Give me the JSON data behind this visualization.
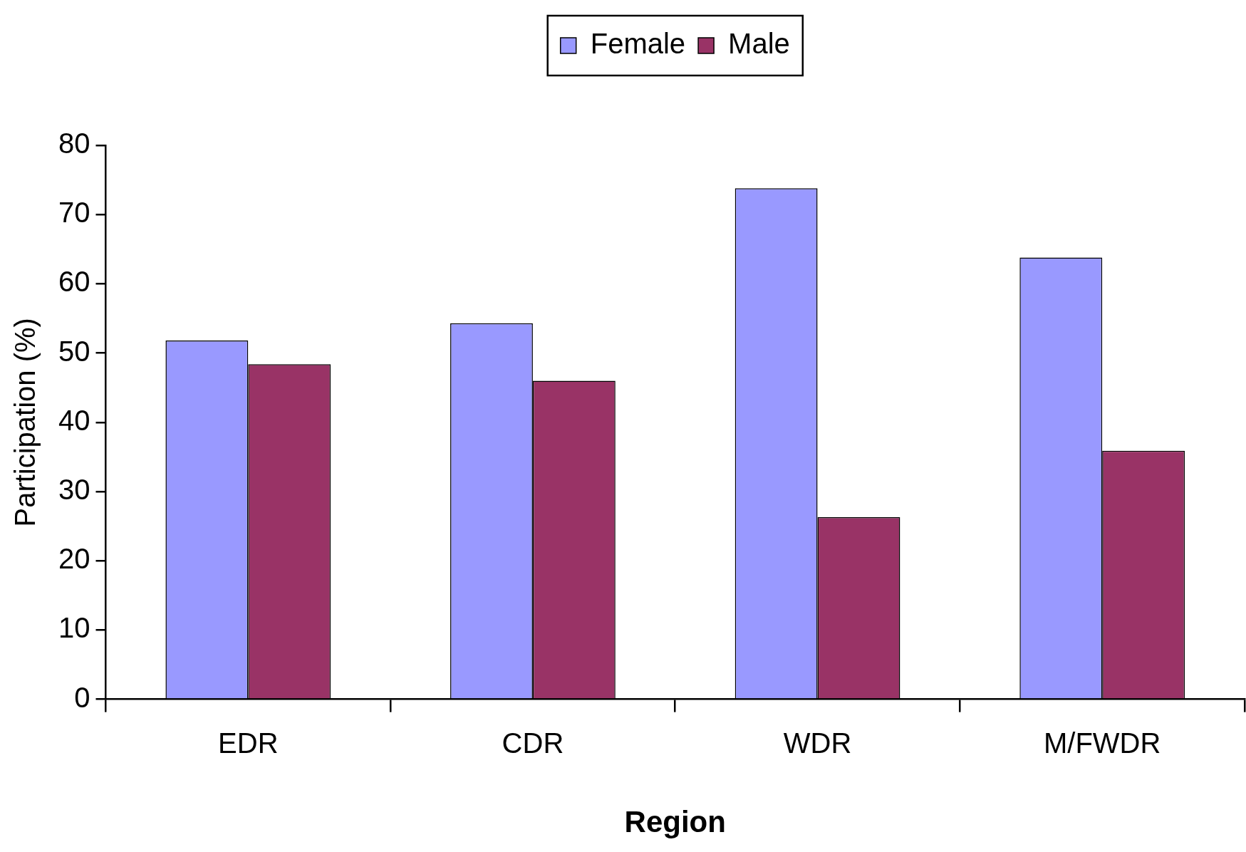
{
  "chart_data": {
    "type": "bar",
    "xlabel": "Region",
    "ylabel": "Participation (%)",
    "categories": [
      "EDR",
      "CDR",
      "WDR",
      "M/FWDR"
    ],
    "series": [
      {
        "name": "Female",
        "color": "#9999ff",
        "values": [
          51.8,
          54.3,
          73.8,
          63.8
        ]
      },
      {
        "name": "Male",
        "color": "#993366",
        "values": [
          48.4,
          46.0,
          26.3,
          35.9
        ]
      }
    ],
    "ylim": [
      0,
      80
    ],
    "yticks": [
      0,
      10,
      20,
      30,
      40,
      50,
      60,
      70,
      80
    ],
    "grid": false,
    "legend": "top"
  }
}
